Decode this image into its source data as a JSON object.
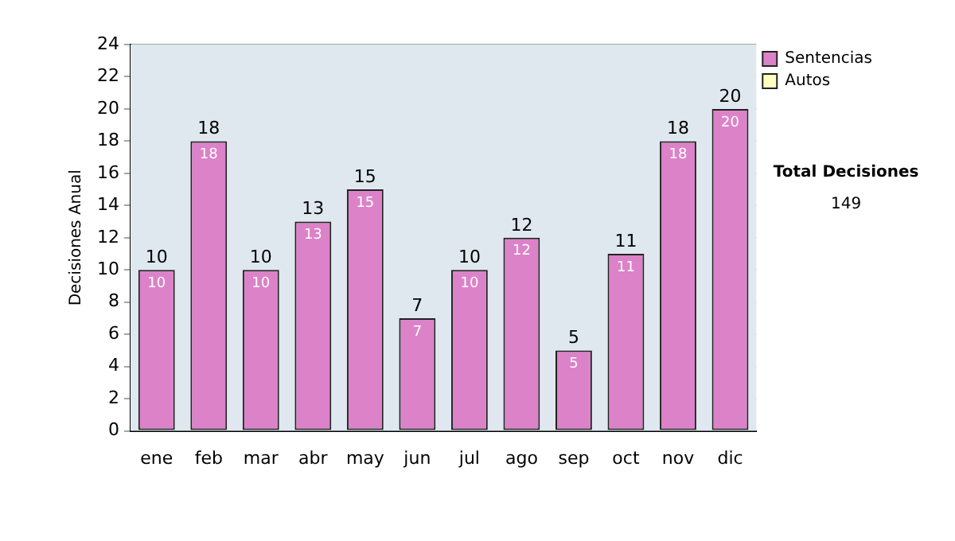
{
  "chart_data": {
    "type": "bar",
    "ylabel": "Decisiones Anual",
    "categories": [
      "ene",
      "feb",
      "mar",
      "abr",
      "may",
      "jun",
      "jul",
      "ago",
      "sep",
      "oct",
      "nov",
      "dic"
    ],
    "series": [
      {
        "name": "Sentencias",
        "color": "#dc82c8",
        "values": [
          10,
          18,
          10,
          13,
          15,
          7,
          10,
          12,
          5,
          11,
          18,
          20
        ],
        "value_labels": [
          "10",
          "18",
          "10",
          "13",
          "15",
          "7",
          "10",
          "12",
          "5",
          "11",
          "18",
          "20"
        ]
      },
      {
        "name": "Autos",
        "color": "#ffffc0",
        "values": [
          0,
          0,
          0,
          0,
          0,
          0,
          0,
          0,
          0,
          0,
          0,
          0
        ]
      }
    ],
    "stacked": true,
    "totals": [
      "10",
      "18",
      "10",
      "13",
      "15",
      "7",
      "10",
      "12",
      "5",
      "11",
      "18",
      "20"
    ],
    "ylim": [
      0,
      24
    ],
    "yticks": [
      0,
      2,
      4,
      6,
      8,
      10,
      12,
      14,
      16,
      18,
      20,
      22,
      24
    ],
    "grid": "y",
    "legend": "right",
    "annotations": [
      "Total Decisiones",
      "149"
    ]
  }
}
